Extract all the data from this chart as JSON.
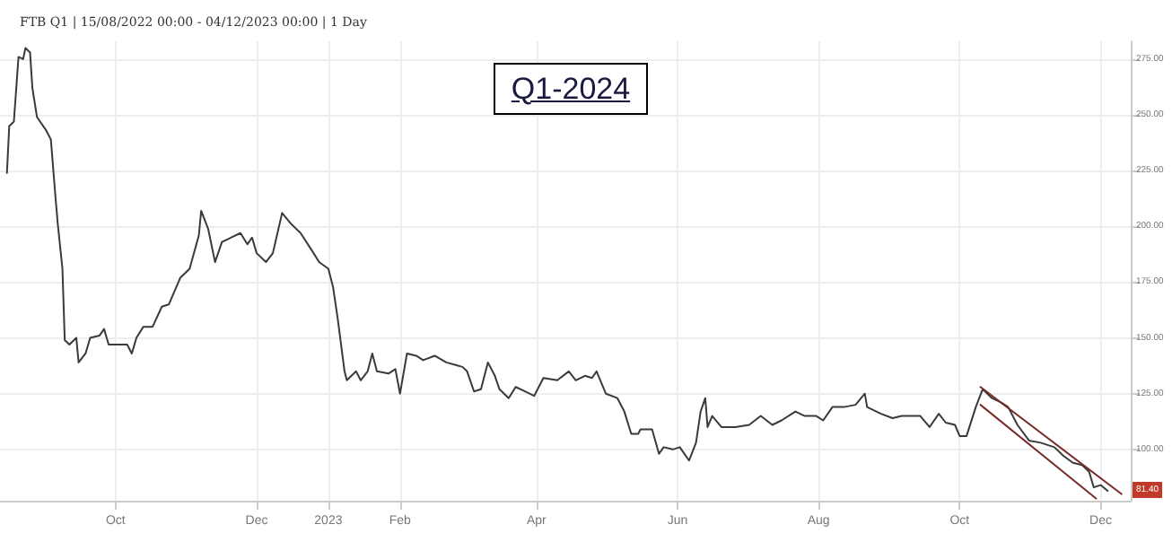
{
  "chart_data": {
    "type": "line",
    "title": "FTB Q1 | 15/08/2022 00:00 - 04/12/2023 00:00 | 1 Day",
    "x": [
      "2022-08-15",
      "2022-08-16",
      "2022-08-18",
      "2022-08-20",
      "2022-08-22",
      "2022-08-23",
      "2022-08-25",
      "2022-08-26",
      "2022-08-28",
      "2022-09-01",
      "2022-09-03",
      "2022-09-05",
      "2022-09-06",
      "2022-09-08",
      "2022-09-09",
      "2022-09-11",
      "2022-09-14",
      "2022-09-15",
      "2022-09-18",
      "2022-09-20",
      "2022-09-24",
      "2022-09-26",
      "2022-09-28",
      "2022-10-02",
      "2022-10-06",
      "2022-10-08",
      "2022-10-10",
      "2022-10-13",
      "2022-10-17",
      "2022-10-21",
      "2022-10-24",
      "2022-10-29",
      "2022-11-02",
      "2022-11-06",
      "2022-11-07",
      "2022-11-10",
      "2022-11-13",
      "2022-11-16",
      "2022-11-20",
      "2022-11-24",
      "2022-11-27",
      "2022-11-29",
      "2022-12-01",
      "2022-12-05",
      "2022-12-08",
      "2022-12-12",
      "2022-12-16",
      "2022-12-20",
      "2022-12-25",
      "2022-12-28",
      "2023-01-01",
      "2023-01-03",
      "2023-01-05",
      "2023-01-08",
      "2023-01-09",
      "2023-01-13",
      "2023-01-15",
      "2023-01-18",
      "2023-01-20",
      "2023-01-22",
      "2023-01-27",
      "2023-01-30",
      "2023-02-01",
      "2023-02-04",
      "2023-02-08",
      "2023-02-11",
      "2023-02-16",
      "2023-02-21",
      "2023-02-28",
      "2023-03-02",
      "2023-03-05",
      "2023-03-08",
      "2023-03-11",
      "2023-03-14",
      "2023-03-16",
      "2023-03-20",
      "2023-03-23",
      "2023-03-27",
      "2023-03-31",
      "2023-04-04",
      "2023-04-10",
      "2023-04-15",
      "2023-04-18",
      "2023-04-22",
      "2023-04-25",
      "2023-04-27",
      "2023-05-01",
      "2023-05-06",
      "2023-05-09",
      "2023-05-12",
      "2023-05-15",
      "2023-05-16",
      "2023-05-21",
      "2023-05-24",
      "2023-05-26",
      "2023-05-30",
      "2023-06-02",
      "2023-06-06",
      "2023-06-09",
      "2023-06-11",
      "2023-06-13",
      "2023-06-14",
      "2023-06-16",
      "2023-06-20",
      "2023-06-26",
      "2023-07-02",
      "2023-07-07",
      "2023-07-12",
      "2023-07-16",
      "2023-07-22",
      "2023-07-26",
      "2023-07-31",
      "2023-08-03",
      "2023-08-07",
      "2023-08-12",
      "2023-08-17",
      "2023-08-21",
      "2023-08-22",
      "2023-08-28",
      "2023-09-02",
      "2023-09-06",
      "2023-09-10",
      "2023-09-14",
      "2023-09-18",
      "2023-09-22",
      "2023-09-25",
      "2023-09-29",
      "2023-10-01",
      "2023-10-04",
      "2023-10-08",
      "2023-10-11",
      "2023-10-15",
      "2023-10-19",
      "2023-10-22",
      "2023-10-26",
      "2023-10-31",
      "2023-11-05",
      "2023-11-11",
      "2023-11-15",
      "2023-11-19",
      "2023-11-23",
      "2023-11-26",
      "2023-11-28",
      "2023-12-01",
      "2023-12-04"
    ],
    "series": [
      {
        "color": "#3a3a3a",
        "values": [
          224,
          245,
          247,
          276,
          275,
          280,
          278,
          262,
          249,
          243,
          239,
          213,
          201,
          181,
          149,
          147,
          150,
          139,
          143,
          150,
          151,
          154,
          147,
          147,
          147,
          143,
          150,
          155,
          155,
          164,
          165,
          177,
          181,
          196,
          207,
          199,
          184,
          193,
          195,
          197,
          192,
          195,
          188,
          184,
          188,
          206,
          201,
          197,
          189,
          184,
          181,
          173,
          159,
          135,
          131,
          135,
          131,
          135,
          143,
          135,
          134,
          136,
          125,
          143,
          142,
          140,
          142,
          139,
          137,
          135,
          126,
          127,
          139,
          133,
          127,
          123,
          128,
          126,
          124,
          132,
          131,
          135,
          131,
          133,
          132,
          135,
          125,
          123,
          117,
          107,
          107,
          109,
          109,
          98,
          101,
          100,
          101,
          95,
          103,
          117,
          123,
          110,
          115,
          110,
          110,
          111,
          115,
          111,
          113,
          117,
          115,
          115,
          113,
          119,
          119,
          120,
          125,
          119,
          116,
          114,
          115,
          115,
          115,
          110,
          116,
          112,
          111,
          106,
          106,
          119,
          127,
          123,
          121,
          119,
          111,
          104,
          103,
          101,
          97,
          94,
          93,
          90,
          83,
          84,
          81.4
        ]
      },
      {
        "color": "#7a2a2a",
        "x": [
          "2023-10-10",
          "2023-12-10"
        ],
        "values": [
          128,
          80
        ]
      },
      {
        "color": "#7a2a2a",
        "x": [
          "2023-10-10",
          "2023-11-29"
        ],
        "values": [
          120,
          78
        ]
      }
    ],
    "xlim": [
      "2022-08-12",
      "2023-12-14"
    ],
    "xticks": [
      {
        "value": "2022-10-01",
        "label": "Oct"
      },
      {
        "value": "2022-12-01",
        "label": "Dec"
      },
      {
        "value": "2023-01-01",
        "label": "2023"
      },
      {
        "value": "2023-02-01",
        "label": "Feb"
      },
      {
        "value": "2023-04-01",
        "label": "Apr"
      },
      {
        "value": "2023-06-01",
        "label": "Jun"
      },
      {
        "value": "2023-08-01",
        "label": "Aug"
      },
      {
        "value": "2023-10-01",
        "label": "Oct"
      },
      {
        "value": "2023-12-01",
        "label": "Dec"
      }
    ],
    "ylim": [
      77,
      283
    ],
    "yticks": [
      {
        "value": 100,
        "label": "100.00"
      },
      {
        "value": 125,
        "label": "125.00"
      },
      {
        "value": 150,
        "label": "150.00"
      },
      {
        "value": 175,
        "label": "175.00"
      },
      {
        "value": 200,
        "label": "200.00"
      },
      {
        "value": 225,
        "label": "225.00"
      },
      {
        "value": 250,
        "label": "250.00"
      },
      {
        "value": 275,
        "label": "275.00"
      }
    ],
    "grid": true,
    "line_style": "solid",
    "annotations": [
      "Q1-2024",
      "81.40"
    ]
  }
}
